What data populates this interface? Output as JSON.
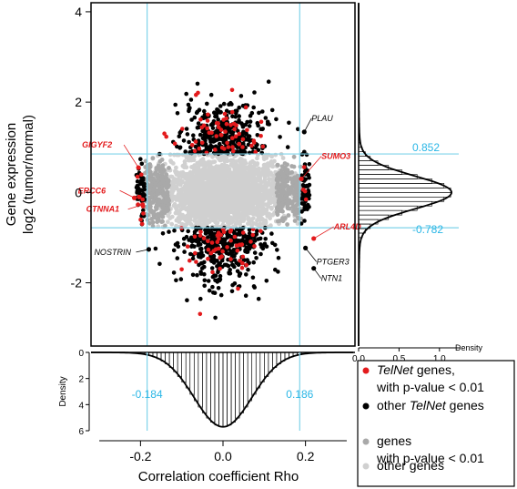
{
  "chart_data": [
    {
      "type": "scatter",
      "xlabel": "Correlation coefficient Rho",
      "ylabel": [
        "Gene expression",
        "log2 (tumor/normal)"
      ],
      "xlim": [
        -0.32,
        0.32
      ],
      "ylim": [
        -3.4,
        4.2
      ],
      "y_ticks": [
        -2,
        0,
        2,
        4
      ],
      "x_ticks": [
        -0.2,
        0.0,
        0.2
      ],
      "x_tick_labels": [
        "-0.2",
        "0.0",
        "0.2"
      ],
      "y_tick_labels": [
        "-2",
        "0",
        "2",
        "4"
      ],
      "thresholds": {
        "vertical": [
          -0.184,
          0.186
        ],
        "horizontal": [
          0.852,
          -0.782
        ],
        "vertical_labels": [
          "-0.184",
          "0.186"
        ],
        "horizontal_labels": [
          "0.852",
          "-0.782"
        ],
        "color": "#7fd3ea",
        "label_color": "#29b6e6"
      },
      "series": [
        {
          "name": "TelNet genes, with p-value < 0.01",
          "color": "#e31a1c"
        },
        {
          "name": "other TelNet genes",
          "color": "#000000"
        },
        {
          "name": "genes with p-value < 0.01",
          "color": "#a9a9a9"
        },
        {
          "name": "other genes",
          "color": "#d0d0d0"
        }
      ],
      "labeled_genes": [
        {
          "name": "GIGYF2",
          "x": -0.205,
          "y": 0.55,
          "color": "#e31a1c"
        },
        {
          "name": "ERCC6",
          "x": -0.215,
          "y": -0.12,
          "color": "#e31a1c"
        },
        {
          "name": "CTNNA1",
          "x": -0.195,
          "y": -0.27,
          "color": "#e31a1c"
        },
        {
          "name": "SUMO3",
          "x": 0.19,
          "y": 0.3,
          "color": "#e31a1c"
        },
        {
          "name": "ARL4D",
          "x": 0.22,
          "y": -1.02,
          "color": "#e31a1c"
        },
        {
          "name": "PLAU",
          "x": 0.197,
          "y": 1.34,
          "color": "#000000"
        },
        {
          "name": "NOSTRIN",
          "x": -0.18,
          "y": -1.26,
          "color": "#000000"
        },
        {
          "name": "PTGER3",
          "x": 0.2,
          "y": -1.23,
          "color": "#000000"
        },
        {
          "name": "NTN1",
          "x": 0.22,
          "y": -1.68,
          "color": "#000000"
        }
      ]
    },
    {
      "type": "area",
      "title": "",
      "ylabel": "Density",
      "axis": "y (gene expression)",
      "x_ticks": [
        0.0,
        0.5,
        1.0
      ],
      "x_tick_labels": [
        "0.0",
        "0.5",
        "1.0"
      ],
      "xlim": [
        0,
        1.25
      ],
      "peak_density": 1.13
    },
    {
      "type": "area",
      "ylabel": "Density",
      "axis": "x (correlation coefficient)",
      "y_ticks": [
        0,
        2,
        4,
        6
      ],
      "y_tick_labels": [
        "0",
        "2",
        "4",
        "6"
      ],
      "ylim": [
        0,
        6
      ],
      "peak_density": 5.7
    }
  ],
  "legend": {
    "items": [
      {
        "lines": [
          "TelNet",
          " genes,"
        ],
        "italic_first": true,
        "second_line": "with p-value < 0.01",
        "color": "#e31a1c"
      },
      {
        "lines": [
          "other ",
          "TelNet",
          " genes"
        ],
        "italic_index": 1,
        "second_line": "",
        "color": "#000000"
      },
      {
        "lines": [
          "genes"
        ],
        "second_line": "with p-value < 0.01",
        "color": "#a9a9a9"
      },
      {
        "lines": [
          "other genes"
        ],
        "second_line": "",
        "color": "#d0d0d0"
      }
    ]
  }
}
